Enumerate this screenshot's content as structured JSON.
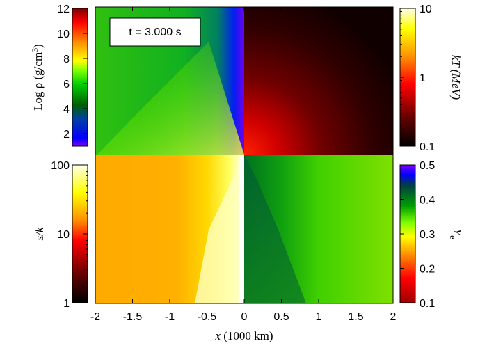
{
  "chart_data": {
    "type": "heatmap",
    "time_label": "t = 3.000 s",
    "xaxis": {
      "label_var": "x",
      "label_unit": " (1000 km)",
      "range": [
        -2,
        2
      ],
      "ticks": [
        "-2",
        "-1.5",
        "-1",
        "-0.5",
        "0",
        "0.5",
        "1",
        "1.5",
        "2"
      ]
    },
    "quadrants": {
      "top_left": "density",
      "top_right": "temperature",
      "bottom_left": "entropy",
      "bottom_right": "electron_fraction"
    },
    "colorbars": {
      "density": {
        "label_pre": "Log ρ (g/cm",
        "label_sup": "3",
        "label_post": ")",
        "scale": "linear",
        "range": [
          1,
          12
        ],
        "ticks": [
          "2",
          "4",
          "6",
          "8",
          "10",
          "12"
        ],
        "colors": [
          "#8000ff",
          "#0000ff",
          "#00a000",
          "#00ff00",
          "#ffff00",
          "#ff8000",
          "#ff0000",
          "#800000"
        ]
      },
      "temperature": {
        "label": "kT (MeV)",
        "scale": "log",
        "range": [
          0.1,
          10
        ],
        "ticks": [
          "0.1",
          "1",
          "10"
        ],
        "colors": [
          "#000000",
          "#800000",
          "#ff0000",
          "#ff8000",
          "#ffff00",
          "#ffffe0"
        ]
      },
      "entropy": {
        "label": "s/k",
        "scale": "log",
        "range": [
          1,
          100
        ],
        "ticks": [
          "1",
          "10",
          "100"
        ],
        "colors": [
          "#000000",
          "#800000",
          "#ff0000",
          "#ff8000",
          "#ffff00",
          "#ffffe0"
        ]
      },
      "electron_fraction": {
        "label_var": "Y",
        "label_sub": "e",
        "scale": "linear",
        "range": [
          0.1,
          0.5
        ],
        "ticks": [
          "0.1",
          "0.2",
          "0.3",
          "0.4",
          "0.5"
        ],
        "colors": [
          "#a00000",
          "#ff0000",
          "#ff8000",
          "#ffff00",
          "#00ff00",
          "#00a000",
          "#0000ff",
          "#8000ff"
        ]
      }
    }
  }
}
